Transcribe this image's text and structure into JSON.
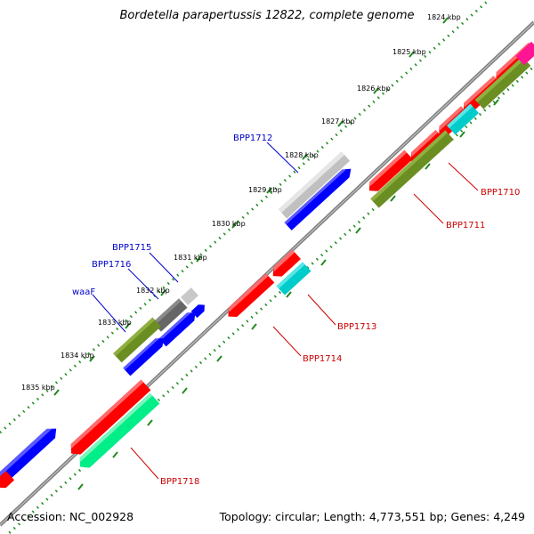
{
  "title": "Bordetella parapertussis 12822, complete genome",
  "footer": {
    "accession": "Accession: NC_002928",
    "summary": "Topology: circular; Length: 4,773,551 bp; Genes: 4,249"
  },
  "colors": {
    "backbone": "#808080",
    "tick": "#1f8a1f",
    "forward_label": "#0000cc",
    "reverse_label": "#cc0000",
    "red": "#ff0000",
    "blue": "#0000ff",
    "olive": "#6b8e23",
    "cyan": "#00cccc",
    "light_gray": "#c0c0c0",
    "dark_gray": "#666666",
    "spring_green": "#00ee88",
    "magenta": "#ff1493"
  },
  "tick_labels": [
    "1824 kbp",
    "1825 kbp",
    "1826 kbp",
    "1827 kbp",
    "1828 kbp",
    "1829 kbp",
    "1830 kbp",
    "1831 kbp",
    "1832 kbp",
    "1833 kbp",
    "1834 kbp",
    "1835 kbp"
  ],
  "gene_labels": [
    {
      "text": "BPP1712",
      "strand": "forward"
    },
    {
      "text": "BPP1715",
      "strand": "forward"
    },
    {
      "text": "BPP1716",
      "strand": "forward"
    },
    {
      "text": "waaF",
      "strand": "forward"
    },
    {
      "text": "BPP1710",
      "strand": "reverse"
    },
    {
      "text": "BPP1711",
      "strand": "reverse"
    },
    {
      "text": "BPP1713",
      "strand": "reverse"
    },
    {
      "text": "BPP1714",
      "strand": "reverse"
    },
    {
      "text": "BPP1718",
      "strand": "reverse"
    }
  ]
}
